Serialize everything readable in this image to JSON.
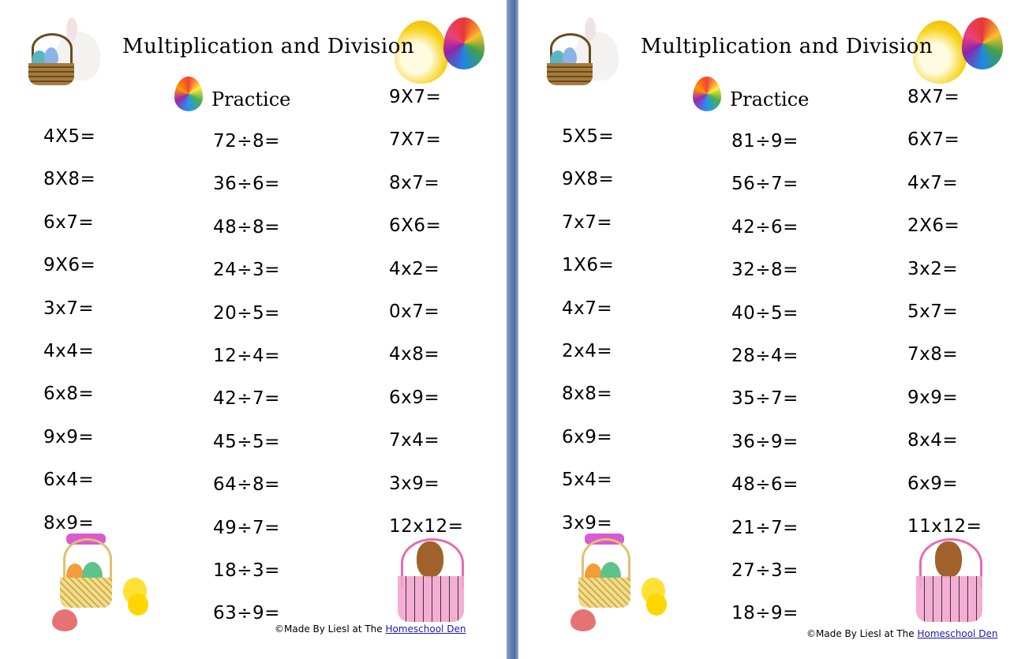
{
  "pages": [
    {
      "title": "Multiplication and Division",
      "subtitle": "Practice",
      "col1": [
        "4X5=",
        "8X8=",
        "6x7=",
        "9X6=",
        "3x7=",
        "4x4=",
        "6x8=",
        "9x9=",
        "6x4=",
        "8x9="
      ],
      "col2": [
        "72÷8=",
        "36÷6=",
        "48÷8=",
        "24÷3=",
        "20÷5=",
        "12÷4=",
        "42÷7=",
        "45÷5=",
        "64÷8=",
        "49÷7=",
        "18÷3=",
        "63÷9="
      ],
      "col3": [
        "9X7=",
        "7X7=",
        "8x7=",
        "6X6=",
        "4x2=",
        "0x7=",
        "4x8=",
        "6x9=",
        "7x4=",
        "3x9=",
        "12x12="
      ],
      "credit_prefix": "©Made By Liesl at The ",
      "credit_link": "Homeschool Den"
    },
    {
      "title": "Multiplication and Division",
      "subtitle": "Practice",
      "col1": [
        "5X5=",
        "9X8=",
        "7x7=",
        "1X6=",
        "4x7=",
        "2x4=",
        "8x8=",
        "6x9=",
        "5x4=",
        "3x9="
      ],
      "col2": [
        "81÷9=",
        "56÷7=",
        "42÷6=",
        "32÷8=",
        "40÷5=",
        "28÷4=",
        "35÷7=",
        "36÷9=",
        "48÷6=",
        "21÷7=",
        "27÷3=",
        "18÷9="
      ],
      "col3": [
        "8X7=",
        "6X7=",
        "4x7=",
        "2X6=",
        "3x2=",
        "5x7=",
        "7x8=",
        "9x9=",
        "8x4=",
        "6x9=",
        "11x12="
      ],
      "credit_prefix": "©Made By Liesl at The ",
      "credit_link": "Homeschool Den"
    }
  ]
}
